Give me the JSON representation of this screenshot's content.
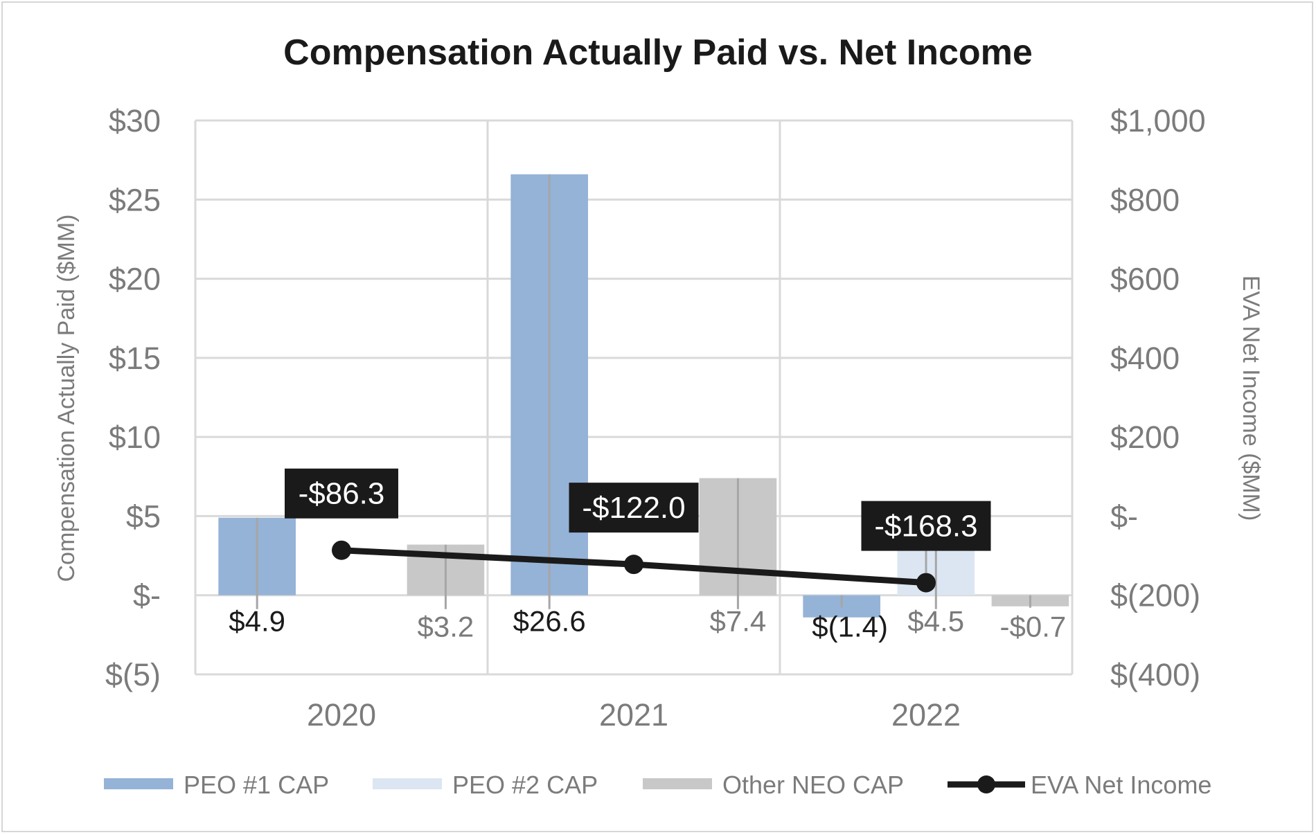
{
  "chart_data": {
    "type": "bar",
    "title": "Compensation Actually Paid vs. Net Income",
    "categories": [
      "2020",
      "2021",
      "2022"
    ],
    "ylabel": "Compensation Actually Paid ($MM)",
    "y2label": "EVA Net Income ($MM)",
    "ylim": [
      -5,
      30
    ],
    "y2lim": [
      -400,
      1000
    ],
    "yticks": [
      -5,
      0,
      5,
      10,
      15,
      20,
      25,
      30
    ],
    "ytick_labels": [
      "$(5)",
      "$-",
      "$5",
      "$10",
      "$15",
      "$20",
      "$25",
      "$30"
    ],
    "y2ticks": [
      -400,
      -200,
      0,
      200,
      400,
      600,
      800,
      1000
    ],
    "y2tick_labels": [
      "$(400)",
      "$(200)",
      "$-",
      "$200",
      "$400",
      "$600",
      "$800",
      "$1,000"
    ],
    "grid": true,
    "legend_position": "bottom",
    "series": [
      {
        "name": "PEO #1 CAP",
        "type": "bar",
        "axis": "left",
        "color": "#95b3d7",
        "values": [
          4.9,
          26.6,
          -1.4
        ],
        "labels": [
          "$4.9",
          "$26.6",
          "$(1.4)"
        ]
      },
      {
        "name": "PEO #2 CAP",
        "type": "bar",
        "axis": "left",
        "color": "#dce6f2",
        "values": [
          null,
          null,
          4.5
        ],
        "labels": [
          null,
          null,
          "$4.5"
        ]
      },
      {
        "name": "Other NEO CAP",
        "type": "bar",
        "axis": "left",
        "color": "#c8c8c8",
        "values": [
          3.2,
          7.4,
          -0.7
        ],
        "labels": [
          "$3.2",
          "$7.4",
          "-$0.7"
        ]
      },
      {
        "name": "EVA Net Income",
        "type": "line",
        "axis": "right",
        "color": "#1a1a1a",
        "values": [
          -86.3,
          -122.0,
          -168.3
        ],
        "labels": [
          "-$86.3",
          "-$122.0",
          "-$168.3"
        ]
      }
    ]
  }
}
